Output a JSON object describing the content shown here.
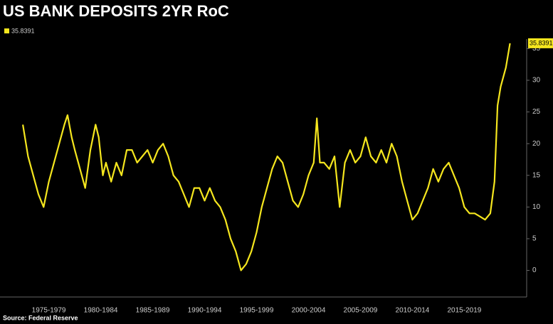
{
  "chart_data": {
    "type": "line",
    "title": "US BANK DEPOSITS 2YR RoC",
    "source": "Source: Federal Reserve",
    "x": [
      1975.0,
      1975.5,
      1976,
      1976.5,
      1977,
      1977.5,
      1978,
      1978.5,
      1979,
      1979.3,
      1979.7,
      1980,
      1980.5,
      1981,
      1981.5,
      1982,
      1982.3,
      1982.7,
      1983,
      1983.5,
      1984,
      1984.5,
      1985,
      1985.5,
      1986,
      1986.5,
      1987,
      1987.5,
      1988,
      1988.5,
      1989,
      1989.5,
      1990,
      1990.5,
      1991,
      1991.5,
      1992,
      1992.5,
      1993,
      1993.5,
      1994,
      1994.5,
      1995,
      1995.5,
      1996,
      1996.5,
      1997,
      1997.5,
      1998,
      1998.5,
      1999,
      1999.5,
      2000,
      2000.5,
      2001,
      2001.5,
      2002,
      2002.5,
      2003,
      2003.3,
      2003.6,
      2004,
      2004.5,
      2005,
      2005.5,
      2006,
      2006.5,
      2007,
      2007.5,
      2008,
      2008.5,
      2009,
      2009.5,
      2010,
      2010.5,
      2011,
      2011.5,
      2012,
      2012.5,
      2013,
      2013.5,
      2014,
      2014.5,
      2015,
      2015.5,
      2016,
      2016.5,
      2017,
      2017.5,
      2018,
      2018.5,
      2019,
      2019.5,
      2020,
      2020.4,
      2020.7,
      2021,
      2021.5,
      2021.9
    ],
    "series": [
      {
        "name": "35.8391",
        "color": "#f5e61e",
        "values": [
          23,
          18,
          15,
          12,
          10,
          14,
          17,
          20,
          23,
          24.5,
          21,
          19,
          16,
          13,
          19,
          23,
          21,
          15,
          17,
          14,
          17,
          15,
          19,
          19,
          17,
          18,
          19,
          17,
          19,
          20,
          18,
          15,
          14,
          12,
          10,
          13,
          13,
          11,
          13,
          11,
          10,
          8,
          5,
          3,
          0,
          1,
          3,
          6,
          10,
          13,
          16,
          18,
          17,
          14,
          11,
          10,
          12,
          15,
          17,
          24,
          17,
          17,
          16,
          18,
          10,
          17,
          19,
          17,
          18,
          21,
          18,
          17,
          19,
          17,
          20,
          18,
          14,
          11,
          8,
          9,
          11,
          13,
          16,
          14,
          16,
          17,
          15,
          13,
          10,
          9,
          9,
          8.5,
          8,
          9,
          14,
          26,
          29,
          32,
          35.8391
        ]
      }
    ],
    "xlim": [
      1972.8,
      2023.5
    ],
    "ylim": [
      -4.2,
      36.5
    ],
    "xticks": [
      {
        "value": 1977.5,
        "label": "1975-1979"
      },
      {
        "value": 1982.5,
        "label": "1980-1984"
      },
      {
        "value": 1987.5,
        "label": "1985-1989"
      },
      {
        "value": 1992.5,
        "label": "1990-1994"
      },
      {
        "value": 1997.5,
        "label": "1995-1999"
      },
      {
        "value": 2002.5,
        "label": "2000-2004"
      },
      {
        "value": 2007.5,
        "label": "2005-2009"
      },
      {
        "value": 2012.5,
        "label": "2010-2014"
      },
      {
        "value": 2017.5,
        "label": "2015-2019"
      }
    ],
    "yticks": [
      0,
      5,
      10,
      15,
      20,
      25,
      30,
      35
    ]
  }
}
